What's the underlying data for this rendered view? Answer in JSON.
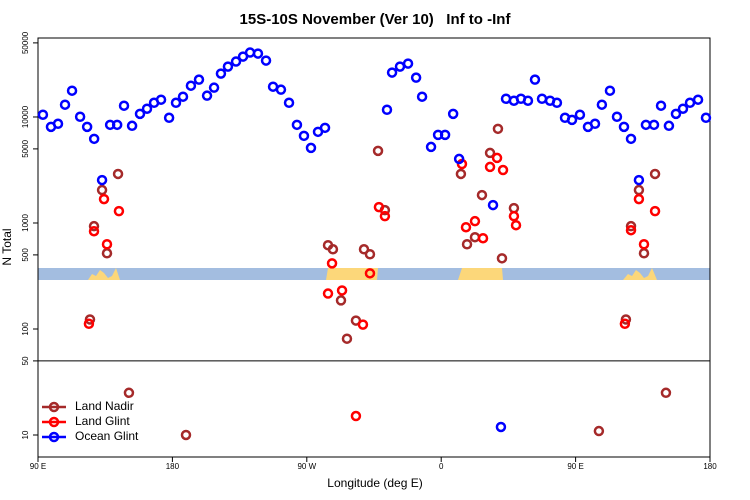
{
  "chart_data": {
    "type": "scatter",
    "title": "15S-10S November (Ver 10)   Inf to -Inf",
    "xlabel": "Longitude (deg E)",
    "ylabel": "N Total",
    "xlim": [
      90,
      540
    ],
    "ylim": [
      6.2,
      55600
    ],
    "log_y": true,
    "xticks": [
      {
        "value": 90,
        "label": "90 E"
      },
      180,
      {
        "value": 270,
        "label": "90 W"
      },
      {
        "value": 360,
        "label": "0"
      },
      {
        "value": 450,
        "label": "90 E"
      },
      {
        "value": 540,
        "label": "180"
      }
    ],
    "yticks": [
      10,
      50,
      100,
      500,
      1000,
      5000,
      10000,
      50000
    ],
    "hline": 50,
    "legend": "bottom-left",
    "series": [
      {
        "name": "Land Nadir",
        "color": "#a52a2a",
        "x": [
          124.8,
          127.5,
          132.9,
          136.2,
          143.6,
          150.9,
          189.1,
          284.2,
          287.5,
          292.9,
          296.9,
          302.9,
          308.3,
          312.3,
          317.7,
          322.3,
          373.2,
          377.3,
          382.6,
          387.3,
          392.7,
          398,
          400.7,
          408.7,
          465.6,
          483.7,
          487.1,
          492.4,
          495.8,
          503.2,
          510.5
        ],
        "values": [
          123,
          933,
          2046,
          518,
          2900,
          25,
          10,
          617,
          565,
          186,
          81,
          120,
          565,
          507,
          4790,
          1322,
          2900,
          630,
          734,
          1834,
          4580,
          7730,
          464,
          1381,
          10.9,
          123,
          933,
          2046,
          518,
          2900,
          25
        ]
      },
      {
        "name": "Land Glint",
        "color": "#ff0000",
        "x": [
          124.1,
          127.5,
          134.2,
          136.2,
          144.2,
          284.2,
          286.9,
          293.6,
          302.9,
          307.6,
          312.3,
          318.3,
          322.3,
          373.9,
          376.6,
          382.6,
          388,
          392.7,
          397.4,
          401.4,
          408.7,
          410.1,
          483,
          487.1,
          492.4,
          495.8,
          503.2
        ],
        "values": [
          112,
          836,
          1680,
          630,
          1294,
          216,
          416,
          231,
          15.1,
          110,
          335,
          1412,
          1160,
          3600,
          912,
          1040,
          718,
          3380,
          4110,
          3160,
          1160,
          953,
          112,
          855,
          1680,
          630,
          1294
        ]
      },
      {
        "name": "Ocean Glint",
        "color": "#0000ff",
        "x": [
          93.3,
          98.7,
          103.4,
          108.1,
          112.8,
          118.2,
          122.9,
          127.6,
          132.9,
          138.3,
          143,
          147.6,
          153,
          158.3,
          163,
          167.7,
          172.4,
          177.8,
          182.4,
          187.1,
          192.4,
          197.8,
          203.2,
          207.9,
          212.5,
          217.2,
          222.6,
          227.3,
          232,
          237.3,
          242.7,
          247.4,
          252.7,
          258.1,
          263.4,
          268.1,
          272.8,
          277.5,
          282.2,
          323.7,
          327.1,
          332.4,
          337.8,
          343.2,
          347.2,
          353.2,
          357.9,
          362.6,
          368,
          372,
          394.7,
          400,
          403.4,
          408.7,
          413.4,
          418.1,
          422.8,
          427.5,
          432.9,
          437.5,
          442.9,
          447.6,
          452.9,
          458.3,
          463,
          467.6,
          473,
          477.7,
          482.4,
          487.1,
          492.4,
          497.1,
          502.5,
          507.2,
          512.5,
          517.2,
          521.9,
          526.6,
          532,
          537.3
        ],
        "values": [
          10500,
          8070,
          8630,
          13060,
          17700,
          10050,
          8070,
          6220,
          2540,
          8430,
          8430,
          12770,
          8260,
          10700,
          11960,
          13620,
          14550,
          9830,
          13620,
          15530,
          19730,
          22500,
          15890,
          18900,
          25650,
          29870,
          33340,
          37150,
          40550,
          39650,
          34050,
          19300,
          18100,
          13620,
          8430,
          6640,
          5110,
          7240,
          7900,
          11700,
          26230,
          29870,
          31900,
          23500,
          15530,
          5220,
          6780,
          6780,
          10700,
          4020,
          1475,
          11.9,
          14860,
          14230,
          14860,
          14230,
          22500,
          14860,
          14230,
          13620,
          9830,
          9390,
          10500,
          8070,
          8630,
          13060,
          17700,
          10050,
          8070,
          6220,
          2540,
          8430,
          8430,
          12770,
          8260,
          10700,
          11960,
          13620,
          14550,
          9830
        ]
      }
    ]
  }
}
